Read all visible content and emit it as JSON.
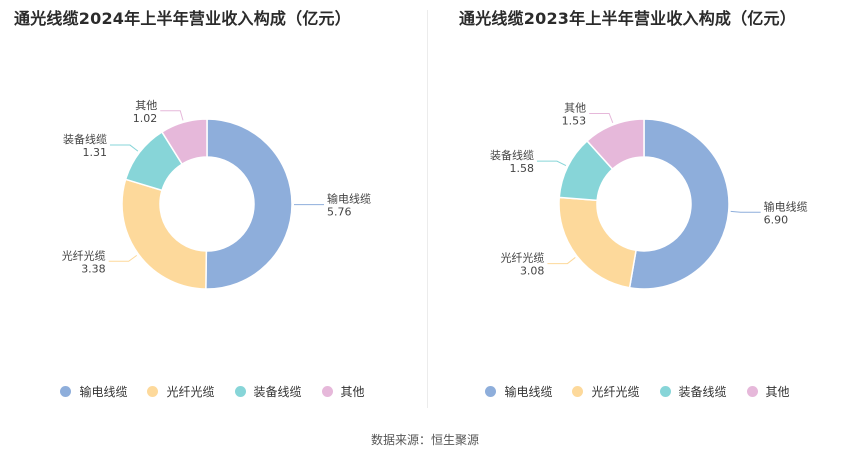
{
  "colors": {
    "series": [
      "#8eaedb",
      "#fdd99b",
      "#87d5d8",
      "#e6b8da"
    ]
  },
  "source": "数据来源：恒生聚源",
  "chart_data": [
    {
      "type": "pie",
      "title": "通光线缆2024年上半年营业收入构成（亿元）",
      "categories": [
        "输电线缆",
        "光纤光缆",
        "装备线缆",
        "其他"
      ],
      "values": [
        5.76,
        3.38,
        1.31,
        1.02
      ],
      "value_labels": [
        "5.76",
        "3.38",
        "1.31",
        "1.02"
      ],
      "legend": "bottom"
    },
    {
      "type": "pie",
      "title": "通光线缆2023年上半年营业收入构成（亿元）",
      "categories": [
        "输电线缆",
        "光纤光缆",
        "装备线缆",
        "其他"
      ],
      "values": [
        6.9,
        3.08,
        1.58,
        1.53
      ],
      "value_labels": [
        "6.90",
        "3.08",
        "1.58",
        "1.53"
      ],
      "legend": "bottom"
    }
  ]
}
